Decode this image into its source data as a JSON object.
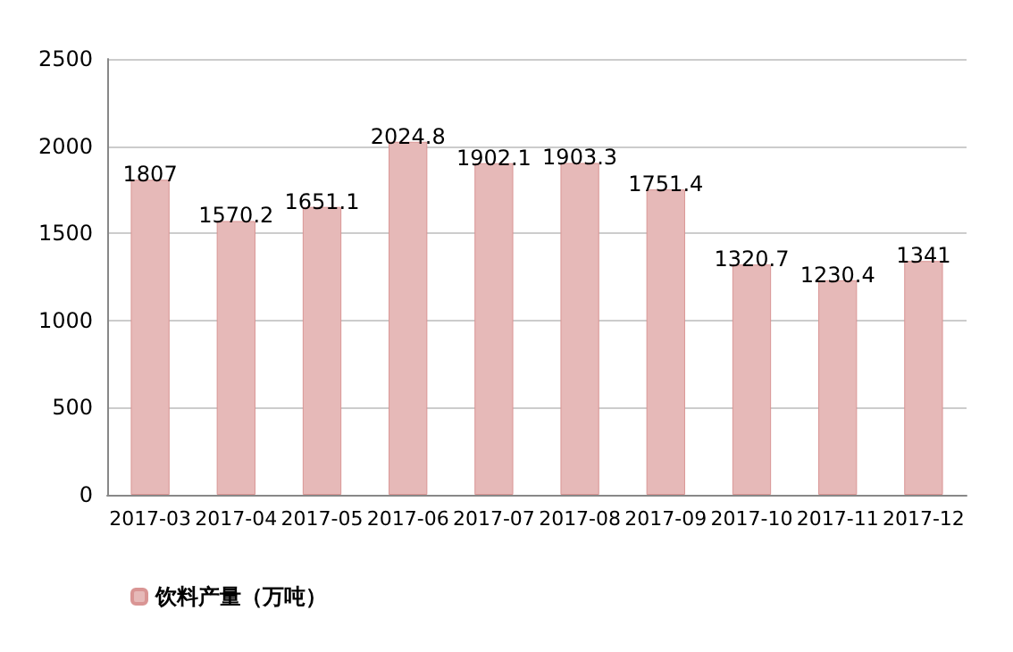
{
  "chart_data": {
    "type": "bar",
    "categories": [
      "2017-03",
      "2017-04",
      "2017-05",
      "2017-06",
      "2017-07",
      "2017-08",
      "2017-09",
      "2017-10",
      "2017-11",
      "2017-12"
    ],
    "series": [
      {
        "name": "饮料产量（万吨）",
        "color": "#e6b9b8",
        "values": [
          1807,
          1570.2,
          1651.1,
          2024.8,
          1902.1,
          1903.3,
          1751.4,
          1320.7,
          1230.4,
          1341
        ]
      }
    ],
    "ylim": [
      0,
      2500
    ],
    "yticks": [
      0,
      500,
      1000,
      1500,
      2000,
      2500
    ],
    "grid": "y",
    "legend": "bottom left",
    "data_labels": true
  }
}
